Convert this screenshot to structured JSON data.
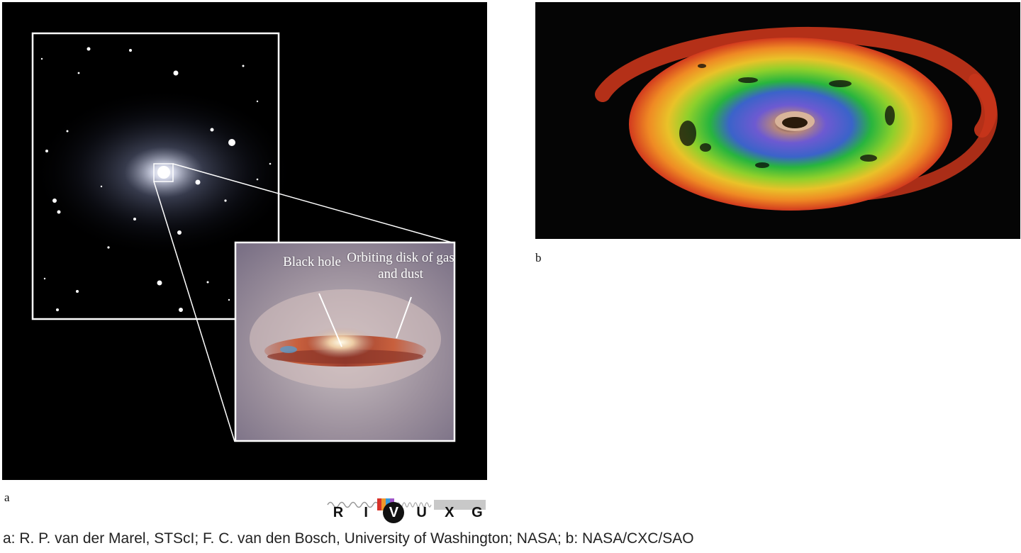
{
  "panel_a": {
    "label": "a",
    "callouts": {
      "black_hole": "Black hole",
      "disk": "Orbiting disk of gas and dust"
    }
  },
  "panel_b": {
    "label": "b"
  },
  "spectrum_bands": [
    "R",
    "I",
    "V",
    "U",
    "X",
    "G"
  ],
  "active_band": "V",
  "credit": "a: R. P. van der Marel, STScI; F. C. van den Bosch, University of Washington; NASA; b: NASA/CXC/SAO"
}
